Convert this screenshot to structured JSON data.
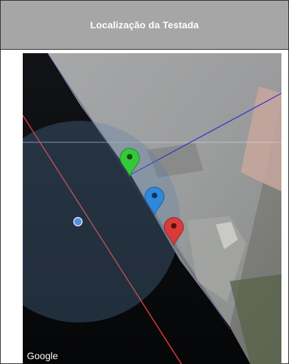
{
  "header": {
    "title": "Localização da Testada"
  },
  "map": {
    "attribution": "Google",
    "markers": [
      {
        "name": "green-marker",
        "color": "#35c83c"
      },
      {
        "name": "blue-marker",
        "color": "#2f88d8"
      },
      {
        "name": "red-marker",
        "color": "#d93b3b"
      }
    ],
    "colors": {
      "boundary_line": "#e23a3a",
      "vertex_line": "#2b2bd0",
      "accuracy_circle": "#5b7fa8",
      "location_dot": "#4f8fe0"
    }
  }
}
